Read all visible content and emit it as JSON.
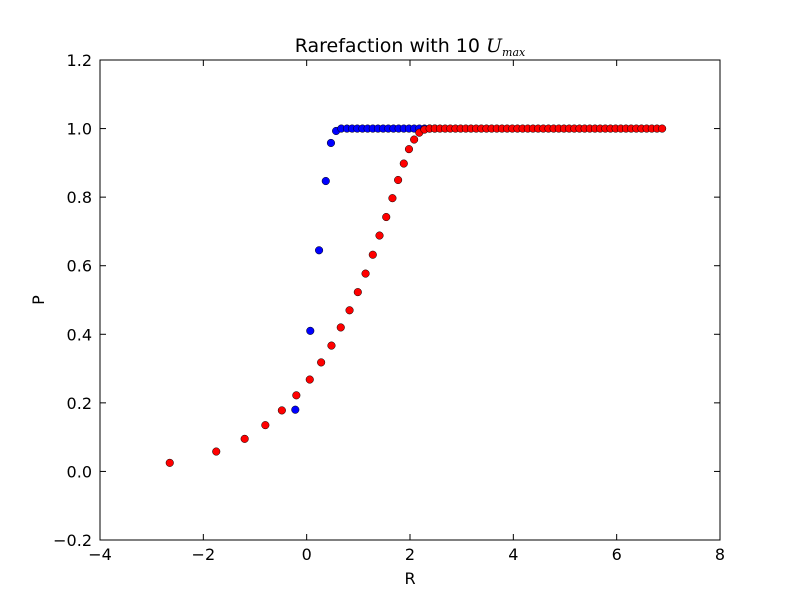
{
  "chart_data": {
    "type": "scatter",
    "title": {
      "text": "Rarefaction with 10 ",
      "math_symbol": "U",
      "math_subscript": "max"
    },
    "xlabel": "R",
    "ylabel": "P",
    "xlim": [
      -4,
      8
    ],
    "ylim": [
      -0.2,
      1.2
    ],
    "xticks": [
      -4,
      -2,
      0,
      2,
      4,
      6,
      8
    ],
    "xtick_labels": [
      "−4",
      "−2",
      "0",
      "2",
      "4",
      "6",
      "8"
    ],
    "yticks": [
      -0.2,
      0.0,
      0.2,
      0.4,
      0.6,
      0.8,
      1.0,
      1.2
    ],
    "ytick_labels": [
      "−0.2",
      "0.0",
      "0.2",
      "0.4",
      "0.6",
      "0.8",
      "1.0",
      "1.2"
    ],
    "grid": false,
    "colors": {
      "blue": "#0000ff",
      "red": "#ff0000"
    },
    "series": [
      {
        "color": "#0000ff",
        "x": [
          -0.22,
          0.07,
          0.24,
          0.37,
          0.47,
          0.57,
          0.67,
          0.78,
          0.88,
          0.98,
          1.08,
          1.18,
          1.28,
          1.38,
          1.48,
          1.58,
          1.68,
          1.78,
          1.88,
          1.98,
          2.08,
          2.18,
          2.28,
          2.38,
          2.48
        ],
        "y": [
          0.18,
          0.41,
          0.645,
          0.847,
          0.958,
          0.993,
          1.0,
          1.0,
          1.0,
          1.0,
          1.0,
          1.0,
          1.0,
          1.0,
          1.0,
          1.0,
          1.0,
          1.0,
          1.0,
          1.0,
          1.0,
          1.0,
          1.0,
          1.0,
          1.0
        ]
      },
      {
        "color": "#ff0000",
        "x": [
          -2.65,
          -1.75,
          -1.2,
          -0.8,
          -0.48,
          -0.2,
          0.06,
          0.28,
          0.48,
          0.66,
          0.83,
          0.99,
          1.14,
          1.28,
          1.41,
          1.54,
          1.66,
          1.77,
          1.88,
          1.98,
          2.08,
          2.18,
          2.28,
          2.38,
          2.48,
          2.58,
          2.68,
          2.78,
          2.88,
          2.98,
          3.08,
          3.18,
          3.28,
          3.38,
          3.48,
          3.58,
          3.68,
          3.78,
          3.88,
          3.98,
          4.08,
          4.18,
          4.28,
          4.38,
          4.48,
          4.58,
          4.68,
          4.78,
          4.88,
          4.98,
          5.08,
          5.18,
          5.28,
          5.38,
          5.48,
          5.58,
          5.68,
          5.78,
          5.88,
          5.98,
          6.08,
          6.18,
          6.28,
          6.38,
          6.48,
          6.58,
          6.68,
          6.78,
          6.88
        ],
        "y": [
          0.025,
          0.058,
          0.095,
          0.135,
          0.178,
          0.222,
          0.268,
          0.318,
          0.367,
          0.42,
          0.47,
          0.523,
          0.577,
          0.632,
          0.688,
          0.742,
          0.797,
          0.85,
          0.898,
          0.94,
          0.968,
          0.988,
          0.997,
          1.0,
          1.0,
          1.0,
          1.0,
          1.0,
          1.0,
          1.0,
          1.0,
          1.0,
          1.0,
          1.0,
          1.0,
          1.0,
          1.0,
          1.0,
          1.0,
          1.0,
          1.0,
          1.0,
          1.0,
          1.0,
          1.0,
          1.0,
          1.0,
          1.0,
          1.0,
          1.0,
          1.0,
          1.0,
          1.0,
          1.0,
          1.0,
          1.0,
          1.0,
          1.0,
          1.0,
          1.0,
          1.0,
          1.0,
          1.0,
          1.0,
          1.0,
          1.0,
          1.0,
          1.0,
          1.0
        ]
      }
    ]
  }
}
